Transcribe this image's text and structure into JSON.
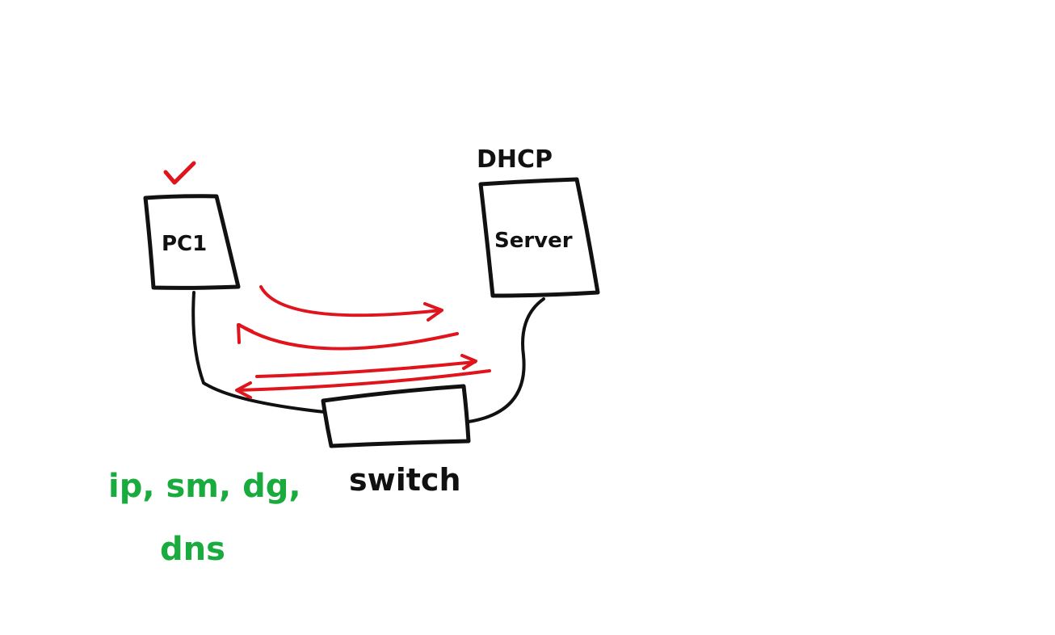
{
  "labels": {
    "pc": "PC1",
    "server": "Server",
    "server_caption": "DHCP",
    "switch": "switch",
    "config_line1": "ip, sm, dg,",
    "config_line2": "dns"
  },
  "colors": {
    "ink": "#111111",
    "red": "#e0141c",
    "green": "#1aab3e",
    "background": "#ffffff"
  },
  "icons": {
    "check": "check-mark-icon"
  }
}
